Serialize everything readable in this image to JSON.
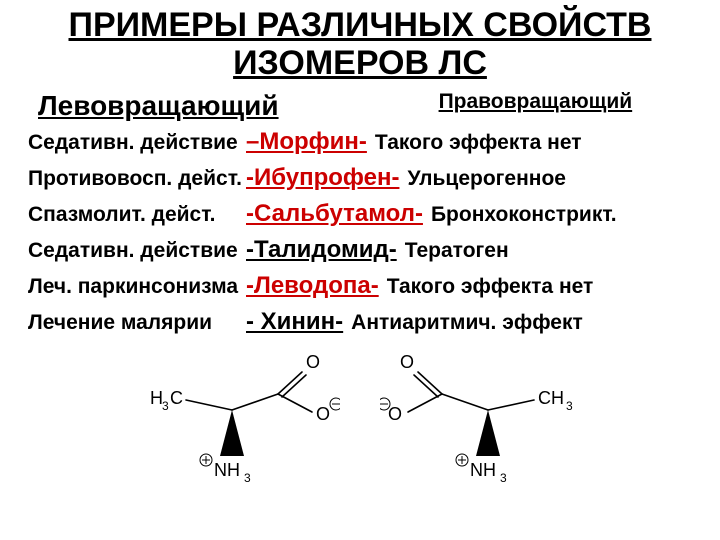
{
  "title_line1": "ПРИМЕРЫ РАЗЛИЧНЫХ СВОЙСТВ",
  "title_line2": "ИЗОМЕРОВ ЛС",
  "header_left": "Левовращающий",
  "header_right": "Правовращающий",
  "rows": [
    {
      "left": "Седативн. действие",
      "prefix": "–",
      "drug": "Морфин",
      "suffix": "-",
      "right": "Такого эффекта нет",
      "highlight": true
    },
    {
      "left": "Противовосп. дейст.",
      "prefix": "-",
      "drug": "Ибупрофен",
      "suffix": "-",
      "right": "Ульцерогенное",
      "highlight": true
    },
    {
      "left": "Спазмолит. дейст.",
      "prefix": "-",
      "drug": "Сальбутамол",
      "suffix": "-",
      "right": "Бронхоконстрикт.",
      "highlight": true
    },
    {
      "left": "Седативн. действие",
      "prefix": "-",
      "drug": "Талидомид",
      "suffix": "-",
      "right": " Тератоген",
      "highlight": false
    },
    {
      "left": "Леч. паркинсонизма",
      "prefix": "-",
      "drug": "Леводопа",
      "suffix": "-",
      "right": "Такого эффекта нет",
      "highlight": true
    },
    {
      "left": "Лечение малярии",
      "prefix": "- ",
      "drug": "Хинин",
      "suffix": "-",
      "right": " Антиаритмич. эффект",
      "highlight": false
    }
  ],
  "colors": {
    "highlight": "#cc0000",
    "text": "#000000",
    "bg": "#ffffff",
    "stroke": "#000000"
  },
  "molecule": {
    "labels": {
      "ch3": "H₃C",
      "ch3r": "CH₃",
      "carbonyl_o": "O",
      "o_neg": "O",
      "nh3": "NH₃"
    },
    "stroke_width": 1.6
  }
}
